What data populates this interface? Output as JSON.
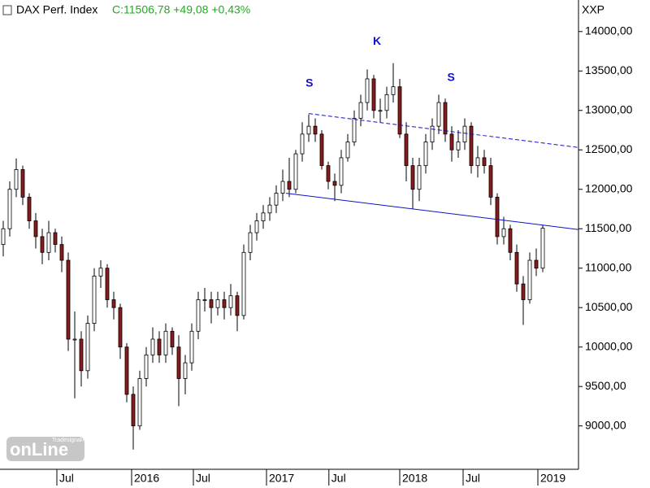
{
  "chart_data": {
    "type": "candlestick",
    "title": "DAX Perf. Index",
    "quote": "C:11506,78 +49,08 +0,43%",
    "quote_color": "#22aa22",
    "y_axis_label": "XXP",
    "watermark": {
      "brand": "Tradesignal®",
      "logo": "onLine"
    },
    "up_color": "#ffffff",
    "down_color": "#8b1a1a",
    "trendline_color": "#1010cc",
    "open": [
      11300,
      11500,
      12000,
      12250,
      11900,
      11600,
      11400,
      11200,
      11450,
      11300,
      11100,
      10100,
      10100,
      9700,
      10300,
      10900,
      11000,
      10600,
      10500,
      10000,
      9400,
      9000,
      9600,
      9900,
      10100,
      9900,
      10200,
      10000,
      9600,
      9800,
      10200,
      10600,
      10600,
      10500,
      10600,
      10500,
      10650,
      10400,
      11200,
      11450,
      11600,
      11700,
      11800,
      11950,
      12100,
      12000,
      12450,
      12700,
      12800,
      12700,
      12300,
      12100,
      12050,
      12400,
      12600,
      12900,
      13100,
      13400,
      13000,
      13000,
      13200,
      13300,
      12700,
      12300,
      12000,
      12300,
      12600,
      12800,
      13100,
      12700,
      12500,
      12600,
      12800,
      12300,
      12400,
      12300,
      11900,
      11400,
      11500,
      11200,
      10800,
      10600,
      11100,
      11000
    ],
    "high": [
      11600,
      12100,
      12390,
      12300,
      11950,
      11700,
      11500,
      11600,
      11500,
      11400,
      11200,
      10450,
      10200,
      10400,
      11000,
      11100,
      11050,
      10700,
      10550,
      10050,
      9500,
      9700,
      10000,
      10250,
      10200,
      10300,
      10250,
      10150,
      9900,
      10300,
      10700,
      10750,
      10700,
      10700,
      10700,
      10800,
      10700,
      11300,
      11550,
      11700,
      11800,
      11900,
      12050,
      12250,
      12400,
      12500,
      12850,
      12950,
      12900,
      12750,
      12350,
      12200,
      12500,
      12700,
      13000,
      13200,
      13520,
      13450,
      13150,
      13300,
      13600,
      13400,
      12850,
      12400,
      12400,
      12700,
      12900,
      13200,
      13150,
      12800,
      12750,
      12900,
      12850,
      12550,
      12500,
      12400,
      11950,
      11650,
      11550,
      11300,
      10900,
      11200,
      11250,
      11550
    ],
    "low": [
      11150,
      11400,
      11900,
      11800,
      11500,
      11250,
      11050,
      11100,
      11200,
      10950,
      9950,
      9350,
      9500,
      9600,
      10200,
      10750,
      10500,
      10350,
      9850,
      9300,
      8700,
      8950,
      9500,
      9800,
      9800,
      9800,
      9900,
      9250,
      9400,
      9700,
      10100,
      10450,
      10300,
      10400,
      10350,
      10400,
      10200,
      10350,
      11100,
      11350,
      11500,
      11600,
      11700,
      11850,
      11900,
      11950,
      12350,
      12600,
      12600,
      12250,
      12000,
      11850,
      11950,
      12350,
      12550,
      12800,
      13000,
      12900,
      12850,
      12900,
      13100,
      12650,
      12100,
      11750,
      11850,
      12200,
      12500,
      12700,
      12600,
      12350,
      12400,
      12500,
      12200,
      12150,
      12200,
      11800,
      11300,
      11300,
      11100,
      10700,
      10280,
      10550,
      10900,
      10950
    ],
    "close": [
      11500,
      12000,
      12250,
      11900,
      11600,
      11400,
      11200,
      11450,
      11300,
      11100,
      10100,
      10100,
      9700,
      10300,
      10900,
      11000,
      10600,
      10500,
      10000,
      9400,
      9000,
      9600,
      9900,
      10100,
      9900,
      10200,
      10000,
      9600,
      9800,
      10200,
      10600,
      10600,
      10500,
      10600,
      10500,
      10650,
      10400,
      11200,
      11450,
      11600,
      11700,
      11800,
      11950,
      12100,
      12000,
      12450,
      12700,
      12800,
      12700,
      12300,
      12100,
      12050,
      12400,
      12600,
      12900,
      13100,
      13400,
      13000,
      13000,
      13200,
      13300,
      12700,
      12300,
      12000,
      12300,
      12600,
      12800,
      13100,
      12700,
      12500,
      12600,
      12800,
      12300,
      12400,
      12300,
      11900,
      11400,
      11500,
      11200,
      10800,
      10600,
      11100,
      11000,
      11506.78
    ],
    "xlim": [
      -0.5,
      88.5
    ],
    "xticks": [
      {
        "value": 8.25,
        "label": "Jul"
      },
      {
        "value": 19.75,
        "label": "2016"
      },
      {
        "value": 29.25,
        "label": "Jul"
      },
      {
        "value": 40.5,
        "label": "2017"
      },
      {
        "value": 50.1,
        "label": "Jul"
      },
      {
        "value": 61,
        "label": "2018"
      },
      {
        "value": 70.75,
        "label": "Jul"
      },
      {
        "value": 82.25,
        "label": "2019"
      }
    ],
    "ylim": [
      8450,
      14400
    ],
    "yticks": [
      {
        "value": 9000,
        "label": "9000,00"
      },
      {
        "value": 9500,
        "label": "9500,00"
      },
      {
        "value": 10000,
        "label": "10000,00"
      },
      {
        "value": 10500,
        "label": "10500,00"
      },
      {
        "value": 11000,
        "label": "11000,00"
      },
      {
        "value": 11500,
        "label": "11500,00"
      },
      {
        "value": 12000,
        "label": "12000,00"
      },
      {
        "value": 12500,
        "label": "12500,00"
      },
      {
        "value": 13000,
        "label": "13000,00"
      },
      {
        "value": 13500,
        "label": "13500,00"
      },
      {
        "value": 14000,
        "label": "14000,00"
      }
    ],
    "trendlines": [
      {
        "x": [
          43.5,
          88.5
        ],
        "y": [
          11950,
          11490
        ],
        "style": "solid"
      },
      {
        "x": [
          47,
          88.5
        ],
        "y": [
          12960,
          12530
        ],
        "style": "dashed"
      }
    ],
    "annotations": [
      {
        "text": "S",
        "x": 47.1,
        "y": 13340
      },
      {
        "text": "K",
        "x": 57.5,
        "y": 13870
      },
      {
        "text": "S",
        "x": 68.9,
        "y": 13410
      }
    ]
  }
}
